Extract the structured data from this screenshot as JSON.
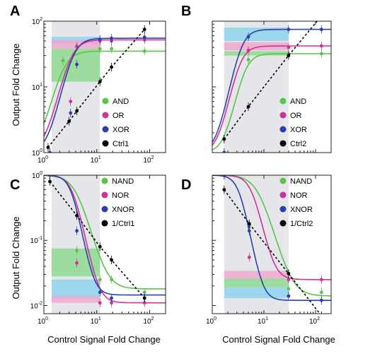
{
  "figure": {
    "ylabel": "Output Fold Change",
    "xlabel": "Control Signal Fold Change"
  },
  "colors": {
    "green": "#5cc24a",
    "magenta": "#cc3399",
    "blue": "#2f3fa8",
    "black": "#000000",
    "band_green": "#8fd990",
    "band_pink": "#f0a8cf",
    "band_blue": "#8fd4ee",
    "grey_region": "#e4e6e9"
  },
  "chart_data": [
    {
      "panel": "A",
      "type": "line",
      "xscale": "log",
      "yscale": "log",
      "xlim": [
        1,
        200
      ],
      "ylim": [
        1,
        100
      ],
      "x_ticks": [
        "10^0",
        "10^1",
        "10^2"
      ],
      "y_ticks": [
        "10^0",
        "10^1",
        "10^2"
      ],
      "grey_region_x": [
        1.4,
        11.5
      ],
      "bands": [
        {
          "color": "band_blue",
          "y": [
            45,
            58
          ]
        },
        {
          "color": "band_pink",
          "y": [
            38,
            52
          ]
        },
        {
          "color": "band_green",
          "y": [
            12,
            38
          ]
        }
      ],
      "legend": [
        "AND",
        "OR",
        "XOR",
        "Ctrl1"
      ],
      "series": [
        {
          "name": "AND",
          "color": "green",
          "fit": {
            "min": 1.0,
            "max": 35,
            "K": 2.3,
            "n": 3.5
          },
          "points": [
            [
              1.3,
              1.0
            ],
            [
              2.3,
              25
            ],
            [
              4.2,
              42
            ],
            [
              11.5,
              38
            ],
            [
              19,
              38
            ],
            [
              80,
              35
            ]
          ]
        },
        {
          "name": "OR",
          "color": "magenta",
          "fit": {
            "min": 1.0,
            "max": 52,
            "K": 3.2,
            "n": 3.6
          },
          "points": [
            [
              1.3,
              1.0
            ],
            [
              3.2,
              6
            ],
            [
              4.2,
              41
            ],
            [
              11.5,
              50
            ],
            [
              19,
              50
            ],
            [
              80,
              52
            ]
          ]
        },
        {
          "name": "XOR",
          "color": "blue",
          "fit": {
            "min": 1.0,
            "max": 55,
            "K": 3.5,
            "n": 3.8
          },
          "points": [
            [
              1.3,
              1.0
            ],
            [
              3.2,
              4
            ],
            [
              4.2,
              22
            ],
            [
              11.5,
              53
            ],
            [
              19,
              55
            ],
            [
              80,
              57
            ]
          ]
        },
        {
          "name": "Ctrl1",
          "color": "black",
          "dashed": true,
          "points": [
            [
              1.2,
              1.2
            ],
            [
              3.0,
              3.0
            ],
            [
              4.2,
              4.3
            ],
            [
              11.5,
              12
            ],
            [
              19,
              20
            ],
            [
              80,
              75
            ]
          ]
        }
      ]
    },
    {
      "panel": "B",
      "type": "line",
      "xscale": "log",
      "yscale": "log",
      "xlim": [
        1,
        200
      ],
      "ylim": [
        1,
        100
      ],
      "grey_region_x": [
        1.7,
        30
      ],
      "bands": [
        {
          "color": "band_blue",
          "y": [
            50,
            80
          ]
        },
        {
          "color": "band_pink",
          "y": [
            36,
            48
          ]
        },
        {
          "color": "band_green",
          "y": [
            30,
            35
          ]
        }
      ],
      "legend": [
        "AND",
        "OR",
        "XOR",
        "Ctrl2"
      ],
      "series": [
        {
          "name": "AND",
          "color": "green",
          "fit": {
            "min": 1.0,
            "max": 32,
            "K": 4.2,
            "n": 4.0
          },
          "points": [
            [
              1.7,
              1.0
            ],
            [
              5.0,
              26
            ],
            [
              30,
              32
            ],
            [
              130,
              32
            ]
          ]
        },
        {
          "name": "OR",
          "color": "magenta",
          "fit": {
            "min": 1.0,
            "max": 42,
            "K": 3.4,
            "n": 4.0
          },
          "points": [
            [
              1.7,
              1.0
            ],
            [
              5.0,
              36
            ],
            [
              30,
              40
            ],
            [
              130,
              42
            ]
          ]
        },
        {
          "name": "XOR",
          "color": "blue",
          "fit": {
            "min": 1.0,
            "max": 75,
            "K": 3.6,
            "n": 4.0
          },
          "points": [
            [
              1.7,
              1.0
            ],
            [
              5.0,
              58
            ],
            [
              30,
              75
            ],
            [
              130,
              75
            ]
          ]
        },
        {
          "name": "Ctrl2",
          "color": "black",
          "dashed": true,
          "points": [
            [
              1.7,
              1.6
            ],
            [
              5.0,
              5.0
            ],
            [
              30,
              30
            ],
            [
              130,
              120
            ]
          ]
        }
      ]
    },
    {
      "panel": "C",
      "type": "line",
      "xscale": "log",
      "yscale": "log",
      "xlim": [
        1,
        200
      ],
      "ylim": [
        0.0075,
        1
      ],
      "x_ticks": [
        "10^0",
        "10^1",
        "10^2"
      ],
      "y_ticks": [
        "10^0",
        "10^-1",
        "10^-2"
      ],
      "grey_region_x": [
        1.4,
        11.5
      ],
      "bands": [
        {
          "color": "band_green",
          "y": [
            0.028,
            0.075
          ]
        },
        {
          "color": "band_blue",
          "y": [
            0.013,
            0.025
          ]
        },
        {
          "color": "band_pink",
          "y": [
            0.011,
            0.014
          ]
        }
      ],
      "legend": [
        "NAND",
        "NOR",
        "XNOR",
        "1/Ctrl1"
      ],
      "series": [
        {
          "name": "NAND",
          "color": "green",
          "fit": {
            "min": 0.018,
            "max": 1.0,
            "K": 4.2,
            "n": -3.2
          },
          "points": [
            [
              1.3,
              1.0
            ],
            [
              4.2,
              0.07
            ],
            [
              11.5,
              0.025
            ],
            [
              19,
              0.025
            ],
            [
              80,
              0.016
            ]
          ]
        },
        {
          "name": "NOR",
          "color": "magenta",
          "fit": {
            "min": 0.011,
            "max": 1.0,
            "K": 3.6,
            "n": -4.2
          },
          "points": [
            [
              1.3,
              1.0
            ],
            [
              4.2,
              0.045
            ],
            [
              11.5,
              0.011
            ],
            [
              19,
              0.011
            ],
            [
              80,
              0.011
            ]
          ]
        },
        {
          "name": "XNOR",
          "color": "blue",
          "fit": {
            "min": 0.0145,
            "max": 1.0,
            "K": 3.4,
            "n": -4.6
          },
          "points": [
            [
              1.3,
              1.0
            ],
            [
              4.2,
              0.14
            ],
            [
              11.5,
              0.016
            ],
            [
              19,
              0.013
            ],
            [
              80,
              0.013
            ]
          ]
        },
        {
          "name": "1/Ctrl1",
          "color": "black",
          "dashed": true,
          "points": [
            [
              1.3,
              0.8
            ],
            [
              4.2,
              0.24
            ],
            [
              11.5,
              0.08
            ],
            [
              19,
              0.05
            ],
            [
              80,
              0.013
            ]
          ]
        }
      ]
    },
    {
      "panel": "D",
      "type": "line",
      "xscale": "log",
      "yscale": "log",
      "xlim": [
        1,
        200
      ],
      "ylim": [
        0.0075,
        1
      ],
      "x_ticks": [
        "10^0",
        "10^1",
        "10^2"
      ],
      "grey_region_x": [
        1.7,
        30
      ],
      "bands": [
        {
          "color": "band_pink",
          "y": [
            0.026,
            0.034
          ]
        },
        {
          "color": "band_green",
          "y": [
            0.019,
            0.026
          ]
        },
        {
          "color": "band_blue",
          "y": [
            0.013,
            0.019
          ]
        }
      ],
      "legend": [
        "NAND",
        "NOR",
        "XNOR",
        "1/Ctrl2"
      ],
      "series": [
        {
          "name": "NAND",
          "color": "green",
          "fit": {
            "min": 0.014,
            "max": 1.0,
            "K": 8.0,
            "n": -3.0
          },
          "points": [
            [
              1.7,
              1.0
            ],
            [
              5.2,
              0.16
            ],
            [
              30,
              0.018
            ],
            [
              130,
              0.016
            ]
          ]
        },
        {
          "name": "NOR",
          "color": "magenta",
          "fit": {
            "min": 0.025,
            "max": 1.0,
            "K": 6.0,
            "n": -4.0
          },
          "points": [
            [
              1.7,
              1.0
            ],
            [
              5.2,
              0.055
            ],
            [
              30,
              0.025
            ],
            [
              130,
              0.025
            ]
          ]
        },
        {
          "name": "XNOR",
          "color": "blue",
          "fit": {
            "min": 0.012,
            "max": 1.0,
            "K": 3.4,
            "n": -4.5
          },
          "points": [
            [
              1.7,
              1.0
            ],
            [
              5.2,
              0.14
            ],
            [
              30,
              0.014
            ],
            [
              130,
              0.012
            ]
          ]
        },
        {
          "name": "1/Ctrl2",
          "color": "black",
          "dashed": true,
          "points": [
            [
              1.7,
              0.6
            ],
            [
              5.2,
              0.18
            ],
            [
              30,
              0.031
            ],
            [
              130,
              0.007
            ]
          ]
        }
      ]
    }
  ]
}
